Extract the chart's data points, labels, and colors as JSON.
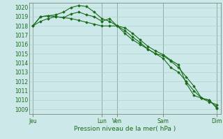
{
  "background_color": "#cce8e8",
  "grid_color": "#aacccc",
  "line_color": "#1a6b1a",
  "marker_color": "#1a6b1a",
  "xlabel": "Pression niveau de la mer( hPa )",
  "ylim": [
    1008.5,
    1020.5
  ],
  "yticks": [
    1009,
    1010,
    1011,
    1012,
    1013,
    1014,
    1015,
    1016,
    1017,
    1018,
    1019,
    1020
  ],
  "xtick_labels": [
    "Jeu",
    "Lun",
    "Ven",
    "Sam",
    "Dim"
  ],
  "xtick_positions": [
    0,
    9,
    11,
    17,
    24
  ],
  "xlim": [
    -0.5,
    24.5
  ],
  "line1_x": [
    0,
    1,
    2,
    3,
    4,
    5,
    6,
    7,
    8,
    9,
    10,
    11,
    12,
    13,
    14,
    15,
    16,
    17,
    18,
    19,
    20,
    21,
    22,
    23,
    24
  ],
  "line1_y": [
    1018.0,
    1018.5,
    1018.8,
    1019.0,
    1018.9,
    1018.8,
    1018.6,
    1018.4,
    1018.2,
    1018.0,
    1018.0,
    1018.0,
    1017.2,
    1016.5,
    1016.0,
    1015.5,
    1015.0,
    1014.5,
    1013.5,
    1013.0,
    1012.0,
    1011.0,
    1010.2,
    1010.0,
    1009.2
  ],
  "line2_x": [
    0,
    1,
    2,
    3,
    4,
    5,
    6,
    7,
    8,
    9,
    10,
    11,
    12,
    13,
    14,
    15,
    16,
    17,
    18,
    19,
    20,
    21,
    22,
    23,
    24
  ],
  "line2_y": [
    1018.0,
    1019.0,
    1019.1,
    1019.2,
    1019.5,
    1020.0,
    1020.2,
    1020.1,
    1019.5,
    1018.8,
    1018.5,
    1018.0,
    1017.5,
    1016.8,
    1016.2,
    1015.5,
    1015.0,
    1014.8,
    1014.2,
    1013.5,
    1012.5,
    1011.5,
    1010.2,
    1010.0,
    1009.1
  ],
  "line3_x": [
    0,
    1,
    2,
    3,
    4,
    5,
    6,
    7,
    8,
    9,
    10,
    11,
    12,
    13,
    14,
    15,
    16,
    17,
    18,
    19,
    20,
    21,
    22,
    23,
    24
  ],
  "line3_y": [
    1018.0,
    1019.0,
    1019.1,
    1019.0,
    1018.9,
    1019.3,
    1019.5,
    1019.2,
    1019.0,
    1018.5,
    1018.8,
    1018.0,
    1017.8,
    1017.2,
    1016.5,
    1015.8,
    1015.3,
    1014.9,
    1014.3,
    1013.8,
    1011.8,
    1010.5,
    1010.2,
    1009.8,
    1009.5
  ]
}
